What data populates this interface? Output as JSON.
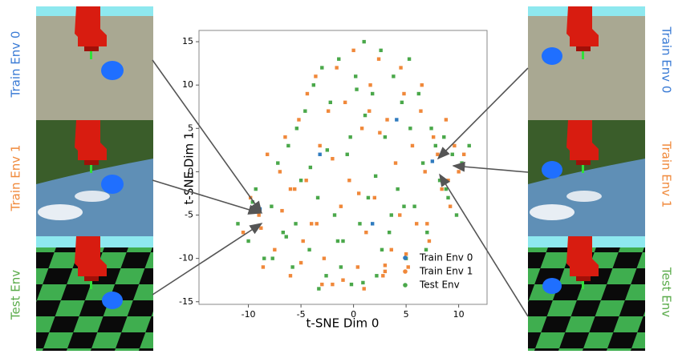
{
  "chart_data": {
    "type": "scatter",
    "xlabel": "t-SNE Dim 0",
    "ylabel": "t-SNE Dim 1",
    "xlim": [
      -14.7,
      12.7
    ],
    "ylim": [
      -15.3,
      16.3
    ],
    "xticks": [
      -10,
      -5,
      0,
      5,
      10
    ],
    "yticks": [
      -15,
      -10,
      -5,
      0,
      5,
      10,
      15
    ],
    "legend": "lower right",
    "series": [
      {
        "name": "Train Env 0",
        "color": "#2f7bbf",
        "x": [
          -3.2,
          1.8,
          7.5,
          -8.9,
          4.1
        ],
        "values": [
          2,
          -6,
          1.2,
          -4.3,
          6
        ]
      },
      {
        "name": "Train Env 1",
        "color": "#f0883a",
        "x": [
          -10.5,
          -9.8,
          -9,
          -8.6,
          -8.2,
          -7.5,
          -7,
          -6.5,
          -6,
          -5.6,
          -5.2,
          -4.8,
          -4.4,
          -4,
          -3.6,
          -3.2,
          -2.8,
          -2.4,
          -2,
          -1.6,
          -1.2,
          -0.8,
          -0.4,
          0,
          0.4,
          0.8,
          1.2,
          1.6,
          2,
          2.4,
          2.8,
          3.2,
          3.6,
          4,
          4.4,
          4.8,
          5.2,
          5.6,
          6,
          6.4,
          6.8,
          7.2,
          7.6,
          8,
          8.4,
          8.8,
          9.2,
          9.6,
          10,
          10.5,
          -8.8,
          -6.8,
          -5,
          -3,
          -1,
          1,
          3,
          5,
          7,
          9,
          -2,
          0.5,
          2.5,
          -4.5,
          4.5,
          -6,
          6.5,
          1.5,
          -3.5,
          3
        ],
        "values": [
          -7,
          -3,
          -5,
          -11,
          2,
          -9,
          0,
          4,
          -12,
          -2,
          6,
          -8,
          9,
          -6,
          11,
          3,
          -10,
          7,
          -13,
          12,
          -4,
          8,
          -1,
          14,
          -11,
          5,
          -7,
          10,
          -3,
          13,
          -12,
          6,
          -9,
          1,
          -5,
          9,
          -11,
          3,
          -6,
          7,
          0,
          -8,
          4,
          2,
          -2,
          6,
          -4,
          3,
          0,
          2,
          -6.5,
          -4.5,
          -10.5,
          -13,
          -12.5,
          -13.5,
          -11.5,
          -9.5,
          -6,
          -1,
          1.5,
          -2.5,
          4.5,
          -1,
          12,
          -2,
          10,
          7,
          -6,
          -10.8
        ]
      },
      {
        "name": "Test Env",
        "color": "#4aa84a",
        "x": [
          -11,
          -10,
          -9.3,
          -8.5,
          -7.8,
          -7.2,
          -6.7,
          -6.2,
          -5.8,
          -5.4,
          -5,
          -4.6,
          -4.2,
          -3.8,
          -3.4,
          -3,
          -2.6,
          -2.2,
          -1.8,
          -1.4,
          -1,
          -0.6,
          -0.2,
          0.2,
          0.6,
          1,
          1.4,
          1.8,
          2.2,
          2.6,
          3,
          3.4,
          3.8,
          4.2,
          4.6,
          5,
          5.4,
          5.8,
          6.2,
          6.6,
          7,
          7.4,
          7.8,
          8.2,
          8.6,
          9,
          9.4,
          9.8,
          10.3,
          11,
          -9.6,
          -7.7,
          -5.5,
          -3.3,
          -1.2,
          0.9,
          2.7,
          4.8,
          6.9,
          8.8,
          -2.5,
          1.1,
          3.6,
          -4.1,
          5.3,
          -6.4,
          -0.3,
          2.1,
          -1.5,
          0.3
        ],
        "values": [
          -6,
          -8,
          -2,
          -10,
          -4,
          1,
          -7,
          3,
          -11,
          5,
          -1,
          7,
          -9,
          10,
          -3,
          12,
          -12,
          8,
          -5,
          13,
          -8,
          2,
          -13,
          11,
          -6,
          15,
          -3,
          9,
          -12,
          14,
          4,
          -7,
          11,
          -2,
          8,
          -10,
          5,
          -4,
          9,
          1,
          -7,
          5,
          3,
          -1,
          4,
          -3,
          2,
          -5,
          1,
          3,
          -3.5,
          -10,
          -6,
          -13.5,
          -11,
          -12.8,
          -9,
          -4,
          -9,
          -2,
          2.5,
          6.5,
          -5,
          0.5,
          13,
          -7.5,
          4,
          -0.5,
          -8,
          9.5
        ]
      }
    ]
  },
  "panels": {
    "left": [
      "Train Env 0",
      "Train Env 1",
      "Test Env"
    ],
    "right": [
      "Train Env 0",
      "Train Env 1",
      "Test Env"
    ]
  }
}
